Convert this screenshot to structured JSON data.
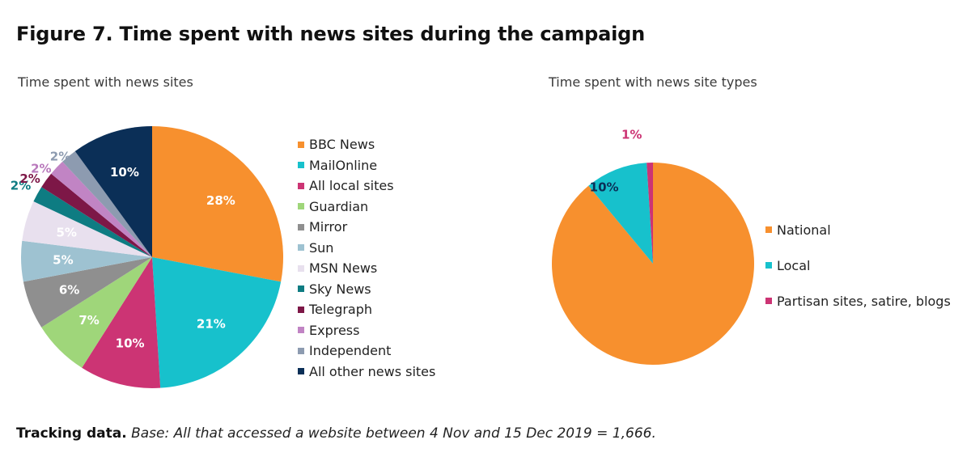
{
  "figure": {
    "title": "Figure 7. Time spent with news sites during the campaign",
    "footnote_bold": "Tracking data.",
    "footnote_text": "Base: All that accessed a website between 4 Nov and 15 Dec 2019 = 1,666."
  },
  "chart_data": [
    {
      "type": "pie",
      "title": "Time spent with news sites",
      "unit": "%",
      "slices": [
        {
          "label": "BBC News",
          "value": 28,
          "color": "#f7902e",
          "label_color": "#ffffff"
        },
        {
          "label": "MailOnline",
          "value": 21,
          "color": "#17c1cc",
          "label_color": "#ffffff"
        },
        {
          "label": "All local sites",
          "value": 10,
          "color": "#cc3474",
          "label_color": "#ffffff"
        },
        {
          "label": "Guardian",
          "value": 7,
          "color": "#9fd67a",
          "label_color": "#ffffff"
        },
        {
          "label": "Mirror",
          "value": 6,
          "color": "#8f8f8f",
          "label_color": "#ffffff"
        },
        {
          "label": "Sun",
          "value": 5,
          "color": "#9ec2d1",
          "label_color": "#ffffff"
        },
        {
          "label": "MSN News",
          "value": 5,
          "color": "#e8e0ee",
          "label_color": "#ffffff"
        },
        {
          "label": "Sky News",
          "value": 2,
          "color": "#0e7c82",
          "label_color": "#0e7c82"
        },
        {
          "label": "Telegraph",
          "value": 2,
          "color": "#7d1747",
          "label_color": "#7d1747"
        },
        {
          "label": "Express",
          "value": 2,
          "color": "#c184c4",
          "label_color": "#b979bc"
        },
        {
          "label": "Independent",
          "value": 2,
          "color": "#8d9bb0",
          "label_color": "#8d9bb0"
        },
        {
          "label": "All other news sites",
          "value": 10,
          "color": "#0b2f57",
          "label_color": "#ffffff"
        }
      ]
    },
    {
      "type": "pie",
      "title": "Time spent with news site types",
      "unit": "%",
      "slices": [
        {
          "label": "National",
          "value": 89,
          "color": "#f7902e",
          "label_color": "#ffffff"
        },
        {
          "label": "Local",
          "value": 10,
          "color": "#17c1cc",
          "label_color": "#0b2f57"
        },
        {
          "label": "Partisan sites, satire, blogs",
          "value": 1,
          "color": "#cc3474",
          "label_color": "#cc3474"
        }
      ]
    }
  ]
}
